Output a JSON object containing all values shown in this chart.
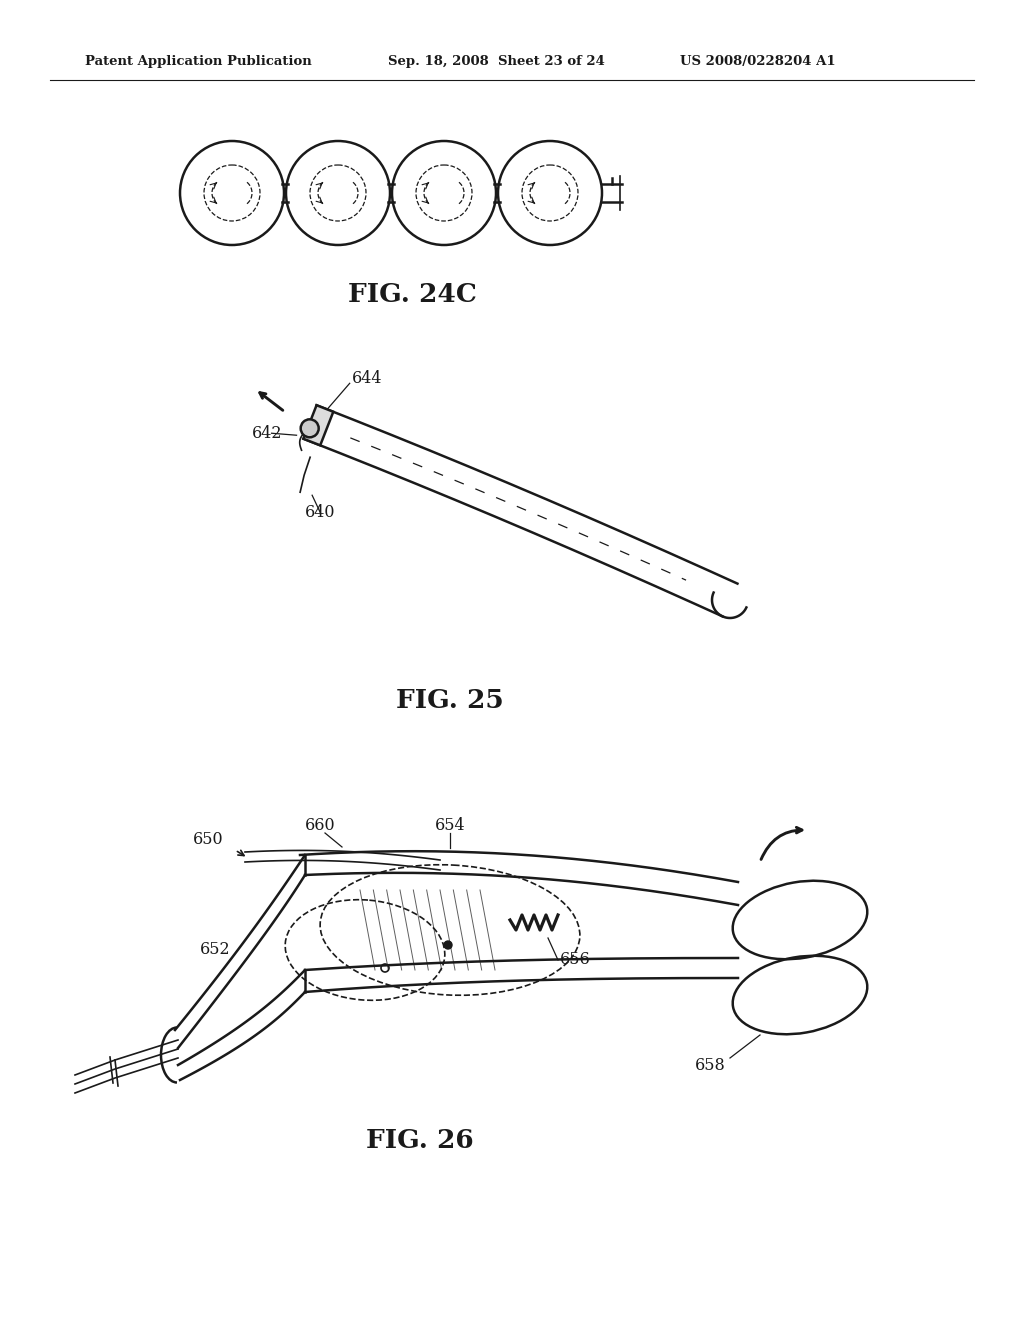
{
  "background_color": "#ffffff",
  "header_left": "Patent Application Publication",
  "header_mid": "Sep. 18, 2008  Sheet 23 of 24",
  "header_right": "US 2008/0228204 A1",
  "fig24c_label": "FIG. 24C",
  "fig25_label": "FIG. 25",
  "fig26_label": "FIG. 26",
  "label_644": "644",
  "label_642": "642",
  "label_640": "640",
  "label_660": "660",
  "label_654": "654",
  "label_650": "650",
  "label_652": "652",
  "label_656": "656",
  "label_658": "658",
  "color": "#1a1a1a"
}
